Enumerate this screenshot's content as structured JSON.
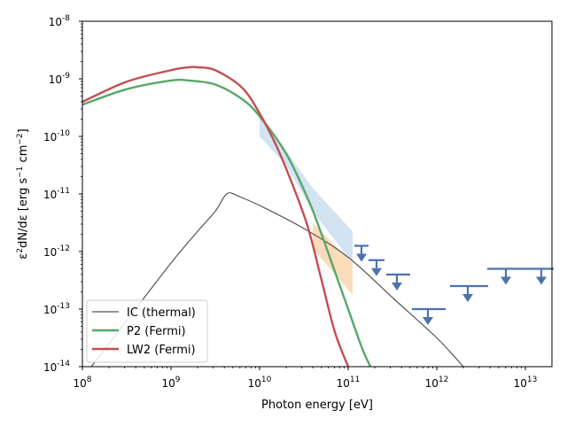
{
  "chart_data": {
    "type": "line",
    "xlabel": "Photon energy [eV]",
    "ylabel": "ε2dN/dε [erg s-1 cm-2]",
    "xscale": "log",
    "yscale": "log",
    "xlim_log10": [
      8,
      13.3
    ],
    "ylim_log10": [
      -14,
      -8
    ],
    "x_ticks": [
      {
        "base": "10",
        "exp": "8",
        "log10": 8
      },
      {
        "base": "10",
        "exp": "9",
        "log10": 9
      },
      {
        "base": "10",
        "exp": "10",
        "log10": 10
      },
      {
        "base": "10",
        "exp": "11",
        "log10": 11
      },
      {
        "base": "10",
        "exp": "12",
        "log10": 12
      },
      {
        "base": "10",
        "exp": "13",
        "log10": 13
      }
    ],
    "y_ticks": [
      {
        "base": "10",
        "exp": "-8",
        "log10": -8
      },
      {
        "base": "10",
        "exp": "-9",
        "log10": -9
      },
      {
        "base": "10",
        "exp": "-10",
        "log10": -10
      },
      {
        "base": "10",
        "exp": "-11",
        "log10": -11
      },
      {
        "base": "10",
        "exp": "-12",
        "log10": -12
      },
      {
        "base": "10",
        "exp": "-13",
        "log10": -13
      },
      {
        "base": "10",
        "exp": "-14",
        "log10": -14
      }
    ],
    "legend_position": "lower-left",
    "series": [
      {
        "name": "IC (thermal)",
        "color": "#555555",
        "width": 1.2,
        "log10_points": [
          [
            8.1,
            -14.0
          ],
          [
            8.5,
            -13.2
          ],
          [
            9.0,
            -12.2
          ],
          [
            9.3,
            -11.65
          ],
          [
            9.5,
            -11.3
          ],
          [
            9.6,
            -11.05
          ],
          [
            9.66,
            -10.98
          ],
          [
            9.75,
            -11.03
          ],
          [
            10.0,
            -11.2
          ],
          [
            10.5,
            -11.6
          ],
          [
            11.0,
            -12.1
          ],
          [
            11.5,
            -12.8
          ],
          [
            12.0,
            -13.5
          ],
          [
            12.3,
            -14.0
          ]
        ]
      },
      {
        "name": "P2 (Fermi)",
        "color": "#55a868",
        "width": 2.4,
        "log10_points": [
          [
            8.0,
            -9.45
          ],
          [
            8.5,
            -9.18
          ],
          [
            9.0,
            -9.03
          ],
          [
            9.2,
            -9.03
          ],
          [
            9.5,
            -9.1
          ],
          [
            9.8,
            -9.35
          ],
          [
            10.0,
            -9.65
          ],
          [
            10.3,
            -10.3
          ],
          [
            10.55,
            -11.1
          ],
          [
            10.7,
            -11.7
          ],
          [
            10.85,
            -12.35
          ],
          [
            11.0,
            -13.0
          ],
          [
            11.15,
            -13.65
          ],
          [
            11.25,
            -14.0
          ]
        ]
      },
      {
        "name": "LW2 (Fermi)",
        "color": "#c44e52",
        "width": 2.4,
        "log10_points": [
          [
            8.0,
            -9.4
          ],
          [
            8.5,
            -9.05
          ],
          [
            9.0,
            -8.85
          ],
          [
            9.2,
            -8.8
          ],
          [
            9.3,
            -8.8
          ],
          [
            9.5,
            -8.85
          ],
          [
            9.8,
            -9.15
          ],
          [
            10.0,
            -9.6
          ],
          [
            10.2,
            -10.2
          ],
          [
            10.4,
            -10.95
          ],
          [
            10.55,
            -11.6
          ],
          [
            10.7,
            -12.5
          ],
          [
            10.85,
            -13.4
          ],
          [
            11.0,
            -14.0
          ]
        ]
      }
    ],
    "bands": [
      {
        "name": "blue-butterfly",
        "color": "#a6c8e6",
        "opacity": 0.5,
        "log10_upper": [
          [
            10.0,
            -9.6
          ],
          [
            10.3,
            -10.25
          ],
          [
            10.6,
            -10.9
          ],
          [
            11.05,
            -11.65
          ]
        ],
        "log10_lower": [
          [
            10.0,
            -10.0
          ],
          [
            10.3,
            -10.5
          ],
          [
            10.6,
            -11.3
          ],
          [
            11.05,
            -12.2
          ]
        ]
      },
      {
        "name": "orange-butterfly",
        "color": "#f7c58c",
        "opacity": 0.6,
        "log10_upper": [
          [
            10.6,
            -11.5
          ],
          [
            11.05,
            -12.2
          ]
        ],
        "log10_lower": [
          [
            10.6,
            -11.95
          ],
          [
            11.05,
            -12.75
          ]
        ]
      }
    ],
    "upper_limits": {
      "color": "#4c72b0",
      "points": [
        {
          "log10_x": 11.15,
          "log10_y": -11.9,
          "log10_xmin": 11.07,
          "log10_xmax": 11.23
        },
        {
          "log10_x": 11.32,
          "log10_y": -12.15,
          "log10_xmin": 11.23,
          "log10_xmax": 11.41
        },
        {
          "log10_x": 11.55,
          "log10_y": -12.4,
          "log10_xmin": 11.43,
          "log10_xmax": 11.7
        },
        {
          "log10_x": 11.9,
          "log10_y": -13.0,
          "log10_xmin": 11.72,
          "log10_xmax": 12.1
        },
        {
          "log10_x": 12.35,
          "log10_y": -12.6,
          "log10_xmin": 12.15,
          "log10_xmax": 12.58
        },
        {
          "log10_x": 12.78,
          "log10_y": -12.3,
          "log10_xmin": 12.57,
          "log10_xmax": 12.98
        },
        {
          "log10_x": 13.18,
          "log10_y": -12.3,
          "log10_xmin": 12.98,
          "log10_xmax": 13.32
        }
      ]
    }
  }
}
